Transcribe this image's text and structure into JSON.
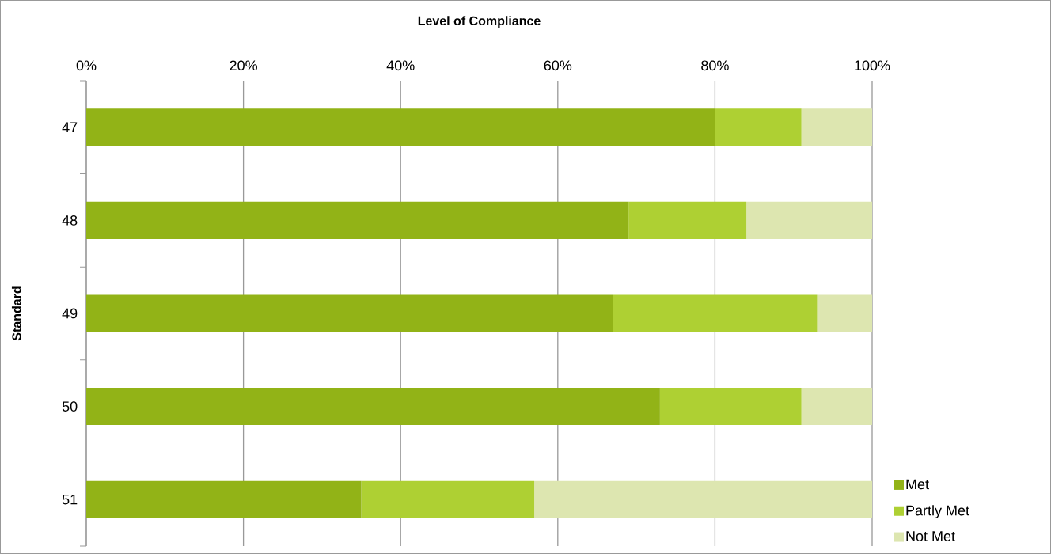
{
  "chart_data": {
    "type": "bar",
    "orientation": "horizontal",
    "stacked": true,
    "xlabel": "Level of Compliance",
    "ylabel": "Standard",
    "categories": [
      "47",
      "48",
      "49",
      "50",
      "51"
    ],
    "xlim": [
      0,
      100
    ],
    "xticks": [
      {
        "value": 0,
        "label": "0%"
      },
      {
        "value": 20,
        "label": "20%"
      },
      {
        "value": 40,
        "label": "40%"
      },
      {
        "value": 60,
        "label": "60%"
      },
      {
        "value": 80,
        "label": "80%"
      },
      {
        "value": 100,
        "label": "100%"
      }
    ],
    "grid": "x",
    "legend": "bottom right",
    "series": [
      {
        "name": "Met",
        "color": "#92b317",
        "values": [
          80,
          69,
          67,
          73,
          35
        ]
      },
      {
        "name": "Partly Met",
        "color": "#aed033",
        "values": [
          11,
          15,
          26,
          18,
          22
        ]
      },
      {
        "name": "Not Met",
        "color": "#dde6b0",
        "values": [
          9,
          16,
          7,
          9,
          43
        ]
      }
    ]
  }
}
